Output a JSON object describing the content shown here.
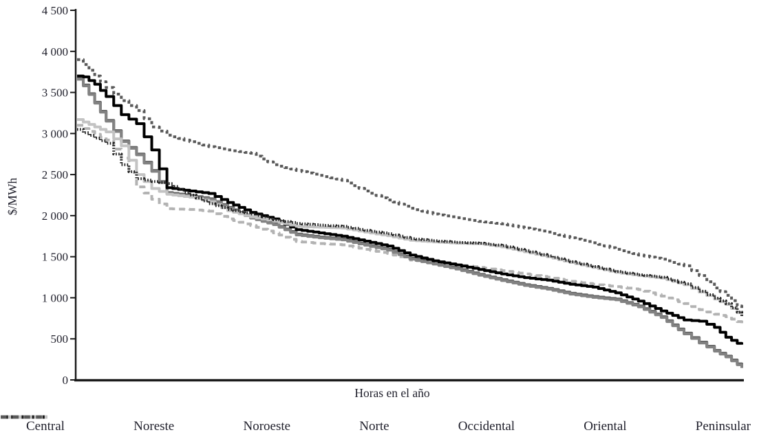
{
  "figure": {
    "background": "#ffffff",
    "text_color": "#1e1e2a",
    "axis_color": "#1a1a1a"
  },
  "chart_data": {
    "type": "line",
    "title": "",
    "xlabel": "Horas en el año",
    "ylabel": "$/MWh",
    "xlim": [
      0,
      8760
    ],
    "ylim": [
      0,
      4500
    ],
    "grid": false,
    "legend_position": "bottom",
    "ytick_values": [
      0,
      500,
      1000,
      1500,
      2000,
      2500,
      3000,
      3500,
      4000,
      4500
    ],
    "ytick_labels": [
      "0",
      "500",
      "1 000",
      "1 500",
      "2 000",
      "2 500",
      "3 000",
      "3 500",
      "4 000",
      "4 500"
    ],
    "xtick_labels": [],
    "hours": [
      0,
      100,
      250,
      400,
      600,
      800,
      1000,
      1200,
      1500,
      1750,
      2000,
      2300,
      2600,
      2900,
      3200,
      3500,
      3800,
      4100,
      4400,
      4700,
      5000,
      5300,
      5600,
      5900,
      6200,
      6500,
      6800,
      7100,
      7400,
      7700,
      8000,
      8200,
      8400,
      8550,
      8700,
      8760
    ],
    "series": [
      {
        "name": "Central",
        "color": "#595959",
        "dash": "",
        "width": 4,
        "values": [
          3670,
          3590,
          3380,
          3160,
          2910,
          2750,
          2550,
          2280,
          2245,
          2205,
          2100,
          1980,
          1900,
          1775,
          1740,
          1715,
          1650,
          1590,
          1480,
          1420,
          1360,
          1285,
          1220,
          1160,
          1115,
          1055,
          1015,
          985,
          900,
          770,
          570,
          460,
          360,
          290,
          195,
          155
        ]
      },
      {
        "name": "Noreste",
        "color": "#b3b3b3",
        "dash": "9 6",
        "width": 4,
        "values": [
          3100,
          3060,
          2990,
          2920,
          2700,
          2350,
          2200,
          2085,
          2075,
          2055,
          1960,
          1880,
          1790,
          1685,
          1660,
          1645,
          1590,
          1540,
          1460,
          1425,
          1400,
          1370,
          1330,
          1290,
          1250,
          1200,
          1165,
          1135,
          1100,
          1020,
          930,
          855,
          800,
          770,
          710,
          690
        ]
      },
      {
        "name": "Noroeste",
        "color": "#828282",
        "dash": "",
        "width": 4,
        "values": [
          3660,
          3580,
          3370,
          3150,
          2900,
          2740,
          2540,
          2270,
          2235,
          2195,
          2090,
          1970,
          1890,
          1765,
          1730,
          1705,
          1640,
          1580,
          1470,
          1410,
          1350,
          1275,
          1210,
          1150,
          1105,
          1045,
          1005,
          975,
          890,
          760,
          560,
          450,
          350,
          280,
          185,
          145
        ]
      },
      {
        "name": "Norte",
        "color": "#000000",
        "dash": "",
        "width": 4,
        "values": [
          3700,
          3690,
          3600,
          3450,
          3230,
          3120,
          2800,
          2340,
          2300,
          2270,
          2160,
          2040,
          1960,
          1830,
          1790,
          1750,
          1690,
          1630,
          1520,
          1450,
          1400,
          1345,
          1290,
          1245,
          1215,
          1165,
          1130,
          1060,
          960,
          840,
          730,
          715,
          640,
          520,
          445,
          430
        ]
      },
      {
        "name": "Occidental",
        "color": "#c3c3c3",
        "dash": "",
        "width": 4,
        "values": [
          3170,
          3140,
          3080,
          3020,
          2850,
          2500,
          2330,
          2260,
          2225,
          2170,
          2060,
          1985,
          1935,
          1870,
          1860,
          1850,
          1800,
          1755,
          1700,
          1680,
          1665,
          1658,
          1620,
          1560,
          1500,
          1430,
          1370,
          1310,
          1270,
          1240,
          1160,
          1070,
          985,
          920,
          820,
          780
        ]
      },
      {
        "name": "Oriental",
        "color": "#1a1a1a",
        "dash": "1.6 2.4",
        "width": 4,
        "values": [
          3050,
          3010,
          2945,
          2880,
          2620,
          2450,
          2415,
          2390,
          2250,
          2145,
          2075,
          2020,
          1950,
          1905,
          1885,
          1870,
          1820,
          1780,
          1720,
          1695,
          1675,
          1665,
          1635,
          1575,
          1510,
          1440,
          1380,
          1320,
          1280,
          1250,
          1170,
          1080,
          995,
          930,
          825,
          775
        ]
      },
      {
        "name": "Peninsular",
        "color": "#595959",
        "dash": "4.5 4.5",
        "width": 4,
        "values": [
          3900,
          3840,
          3700,
          3560,
          3400,
          3280,
          3080,
          2980,
          2900,
          2840,
          2800,
          2760,
          2620,
          2550,
          2490,
          2430,
          2300,
          2190,
          2090,
          2020,
          1975,
          1930,
          1900,
          1850,
          1800,
          1730,
          1670,
          1590,
          1520,
          1470,
          1390,
          1270,
          1120,
          1030,
          900,
          830
        ]
      }
    ]
  },
  "legend": {
    "items": [
      "Central",
      "Noreste",
      "Noroeste",
      "Norte",
      "Occidental",
      "Oriental",
      "Peninsular"
    ]
  }
}
